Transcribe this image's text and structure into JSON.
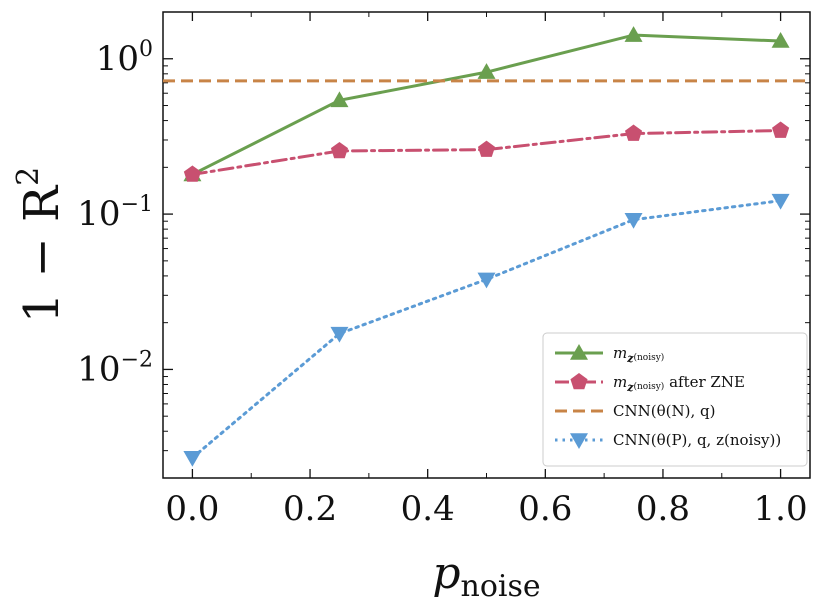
{
  "chart_data": {
    "type": "line",
    "xlabel": "p",
    "xlabel_sub": "noise",
    "ylabel": "1 − R",
    "ylabel_sup": "2",
    "y_scale": "log",
    "xlim": [
      -0.05,
      1.05
    ],
    "ylim": [
      0.002,
      2.0
    ],
    "x_ticks": [
      0.0,
      0.2,
      0.4,
      0.6,
      0.8,
      1.0
    ],
    "x_tick_labels": [
      "0.0",
      "0.2",
      "0.4",
      "0.6",
      "0.8",
      "1.0"
    ],
    "y_ticks": [
      0.01,
      0.1,
      1.0
    ],
    "y_tick_labels": [
      {
        "base": "10",
        "exp": "−2"
      },
      {
        "base": "10",
        "exp": "−1"
      },
      {
        "base": "10",
        "exp": "0"
      }
    ],
    "grid": false,
    "legend_position": "bottom-right",
    "series": [
      {
        "name": "m_z(noisy)",
        "legend_main": "m",
        "legend_sub": "z",
        "legend_subsub": "(noisy)",
        "legend_suffix": "",
        "color": "#6a9f4f",
        "dash": "solid",
        "marker": "triangle-up",
        "x": [
          0.0,
          0.25,
          0.5,
          0.75,
          1.0
        ],
        "y": [
          0.18,
          0.54,
          0.82,
          1.42,
          1.3
        ]
      },
      {
        "name": "m_z(noisy) after ZNE",
        "legend_main": "m",
        "legend_sub": "z",
        "legend_subsub": "(noisy)",
        "legend_suffix": "after ZNE",
        "color": "#c85070",
        "dash": "dashdot",
        "marker": "pentagon",
        "x": [
          0.0,
          0.25,
          0.5,
          0.75,
          1.0
        ],
        "y": [
          0.18,
          0.255,
          0.26,
          0.33,
          0.345
        ]
      },
      {
        "name": "CNN(θ(N), q)",
        "legend_text": "CNN(θ(N), q)",
        "color": "#c88447",
        "dash": "dashed",
        "marker": "none",
        "horizontal": true,
        "y": [
          0.72
        ]
      },
      {
        "name": "CNN(θ(P), q, z(noisy))",
        "legend_text": "CNN(θ(P), q, z(noisy))",
        "color": "#5b9bd5",
        "dash": "dotted",
        "marker": "triangle-down",
        "x": [
          0.0,
          0.25,
          0.5,
          0.75,
          1.0
        ],
        "y": [
          0.0027,
          0.017,
          0.038,
          0.092,
          0.122
        ]
      }
    ]
  }
}
